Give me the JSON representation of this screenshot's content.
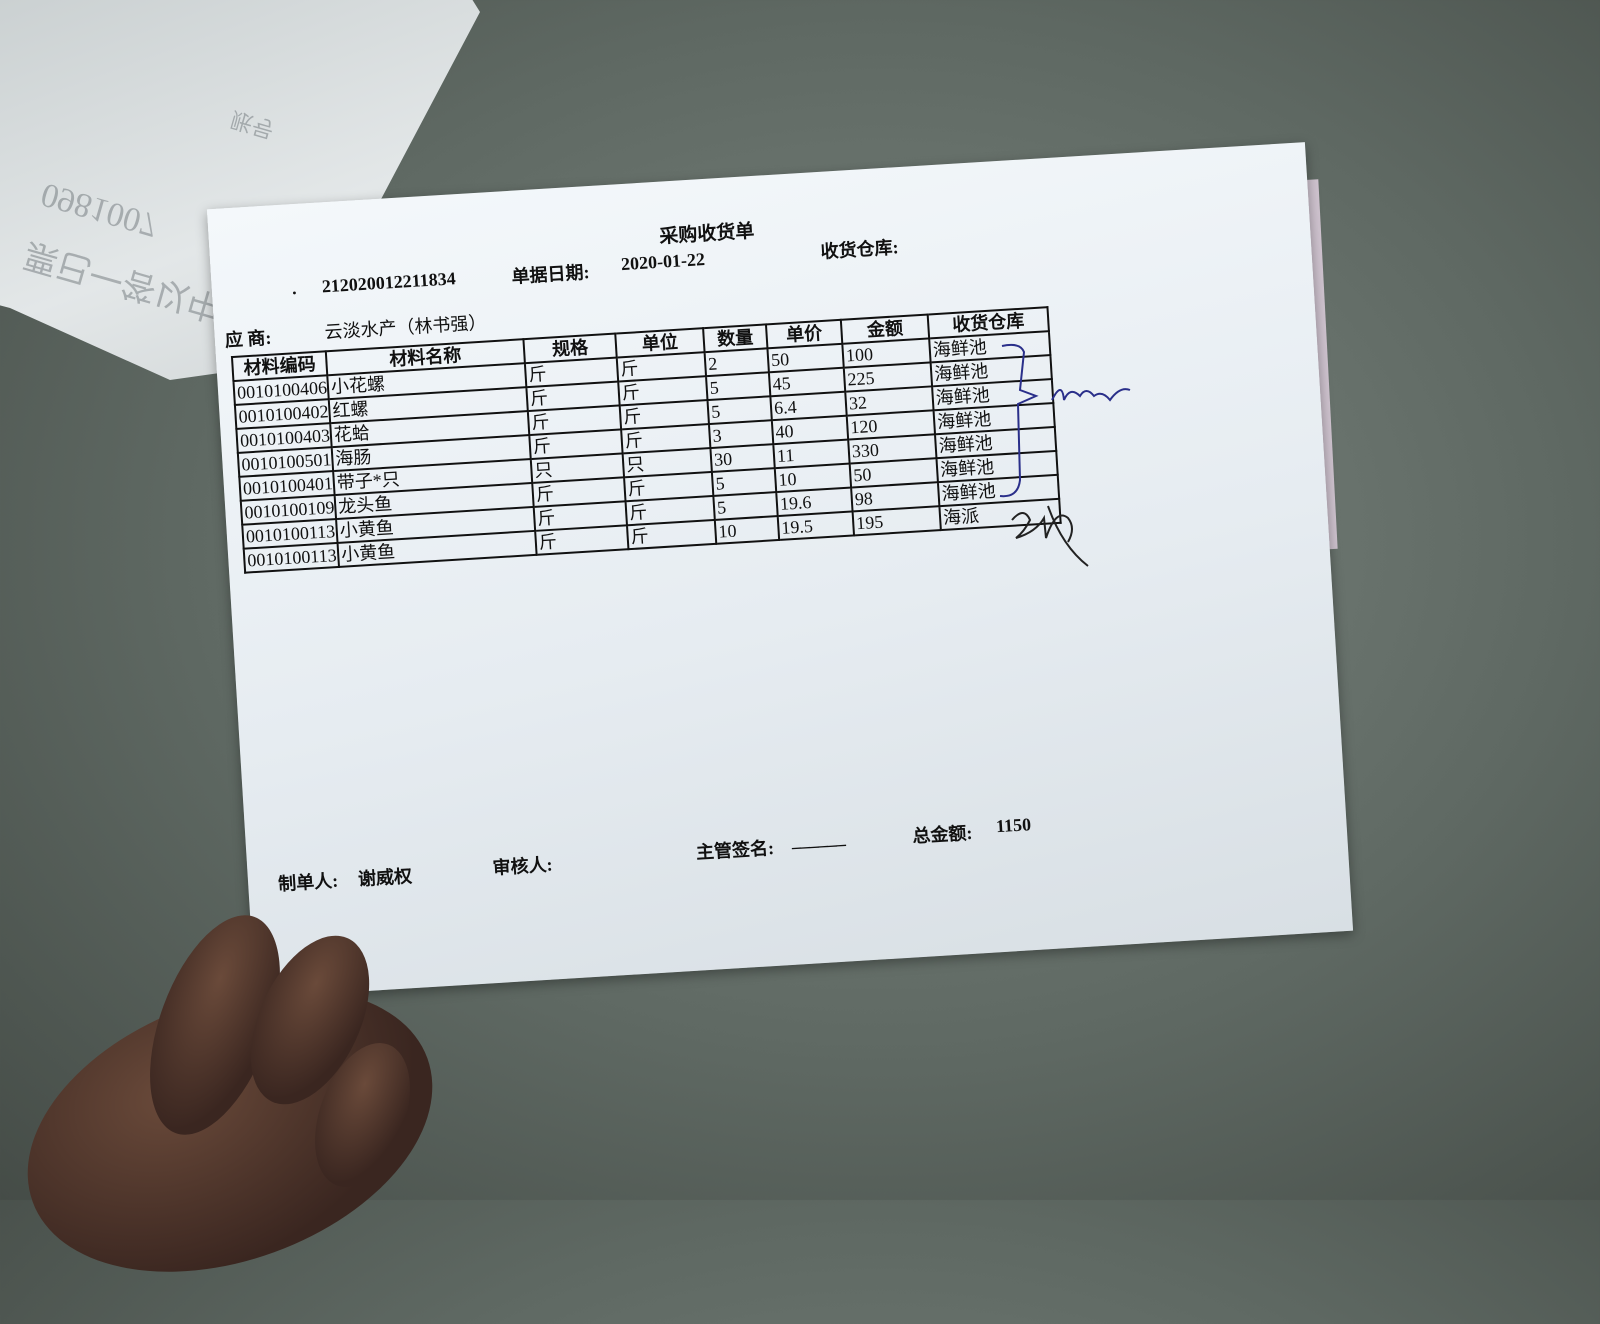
{
  "background_receipt": {
    "ghost_text": [
      "0981007",
      "票已一答以中",
      "账号"
    ]
  },
  "form": {
    "title": "采购收货单",
    "bill_no_label": ".",
    "bill_no": "212020012211834",
    "date_label": "单据日期:",
    "date": "2020-01-22",
    "warehouse_label": "收货仓库:",
    "supplier_label": "应 商:",
    "supplier": "云淡水产（林书强）",
    "table": {
      "headers": [
        "材料编码",
        "材料名称",
        "规格",
        "单位",
        "数量",
        "单价",
        "金额",
        "收货仓库"
      ],
      "rows": [
        [
          "0010100406",
          "小花螺",
          "斤",
          "斤",
          "2",
          "50",
          "100",
          "海鲜池"
        ],
        [
          "0010100402",
          "红螺",
          "斤",
          "斤",
          "5",
          "45",
          "225",
          "海鲜池"
        ],
        [
          "0010100403",
          "花蛤",
          "斤",
          "斤",
          "5",
          "6.4",
          "32",
          "海鲜池"
        ],
        [
          "0010100501",
          "海肠",
          "斤",
          "斤",
          "3",
          "40",
          "120",
          "海鲜池"
        ],
        [
          "0010100401",
          "带子*只",
          "只",
          "只",
          "30",
          "11",
          "330",
          "海鲜池"
        ],
        [
          "0010100109",
          "龙头鱼",
          "斤",
          "斤",
          "5",
          "10",
          "50",
          "海鲜池"
        ],
        [
          "0010100113",
          "小黄鱼",
          "斤",
          "斤",
          "5",
          "19.6",
          "98",
          "海鲜池"
        ],
        [
          "0010100113",
          "小黄鱼",
          "斤",
          "斤",
          "10",
          "19.5",
          "195",
          "海派"
        ]
      ]
    },
    "maker_label": "制单人:",
    "maker": "谢威权",
    "reviewer_label": "审核人:",
    "supervisor_label": "主管签名:",
    "supervisor_blank": "______",
    "total_label": "总金额:",
    "total": "1150"
  },
  "colors": {
    "ink": "#111111",
    "signature_blue": "#2a2f8a",
    "paper": "#eef3f7"
  }
}
